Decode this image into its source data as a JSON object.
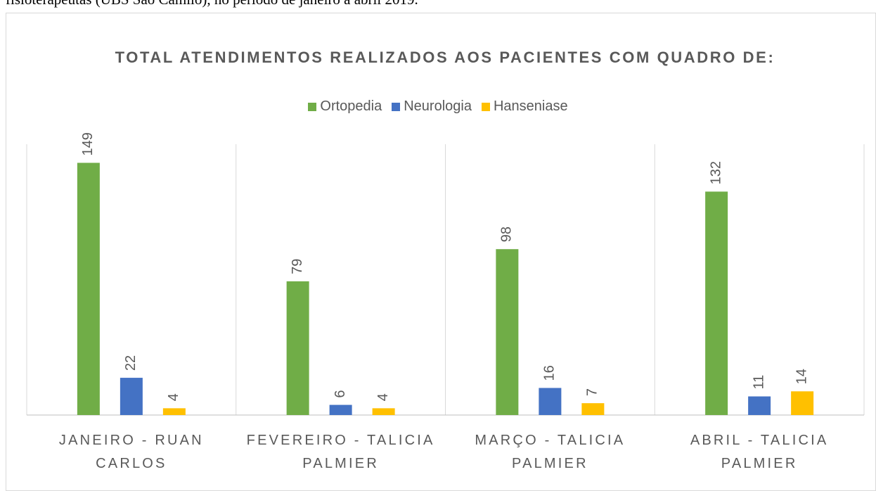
{
  "caption": "fisioterapeutas (UBS São Camilo), no período de janeiro a abril 2019.",
  "chart_data": {
    "type": "bar",
    "title": "TOTAL ATENDIMENTOS REALIZADOS AOS PACIENTES COM QUADRO DE:",
    "categories": [
      "JANEIRO - RUAN CARLOS",
      "FEVEREIRO - TALICIA PALMIER",
      "MARÇO - TALICIA PALMIER",
      "ABRIL - TALICIA PALMIER"
    ],
    "series": [
      {
        "name": "Ortopedia",
        "color": "#70ad47",
        "values": [
          149,
          79,
          98,
          132
        ]
      },
      {
        "name": "Neurologia",
        "color": "#4472c4",
        "values": [
          22,
          6,
          16,
          11
        ]
      },
      {
        "name": "Hanseniase",
        "color": "#ffc000",
        "values": [
          4,
          4,
          7,
          14
        ]
      }
    ],
    "ylim": [
      0,
      160
    ],
    "legend": "top",
    "data_labels": true
  }
}
